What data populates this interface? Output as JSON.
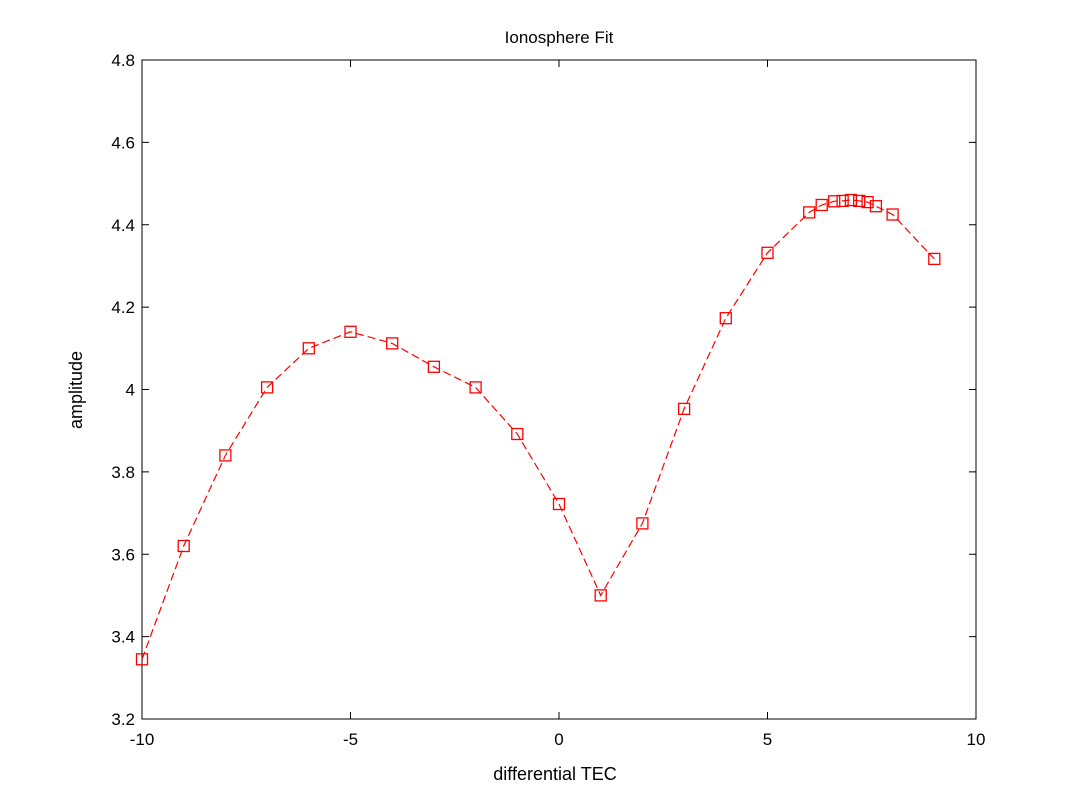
{
  "chart_data": {
    "type": "line",
    "title": "Ionosphere Fit",
    "xlabel": "differential TEC",
    "ylabel": "amplitude",
    "xlim": [
      -10,
      10
    ],
    "ylim": [
      3.2,
      4.8
    ],
    "xticks": [
      -10,
      -5,
      0,
      5,
      10
    ],
    "xtick_labels": [
      "-10",
      "-5",
      "0",
      "5",
      "10"
    ],
    "yticks": [
      3.2,
      3.4,
      3.6,
      3.8,
      4.0,
      4.2,
      4.4,
      4.6,
      4.8
    ],
    "ytick_labels": [
      "3.2",
      "3.4",
      "3.6",
      "3.8",
      "4",
      "4.2",
      "4.4",
      "4.6",
      "4.8"
    ],
    "grid": false,
    "series": [
      {
        "color": "#ff0000",
        "line_style": "dashed",
        "marker": "square",
        "x": [
          -10,
          -9,
          -8,
          -7,
          -6,
          -5,
          -4,
          -3,
          -2,
          -1,
          0,
          1,
          2,
          3,
          4,
          5,
          6,
          6.3,
          6.6,
          6.8,
          7,
          7.2,
          7.4,
          7.6,
          8,
          9
        ],
        "y": [
          3.345,
          3.62,
          3.84,
          4.005,
          4.1,
          4.14,
          4.112,
          4.055,
          4.005,
          3.892,
          3.722,
          3.5,
          3.675,
          3.953,
          4.173,
          4.332,
          4.43,
          4.448,
          4.457,
          4.458,
          4.46,
          4.458,
          4.455,
          4.445,
          4.425,
          4.317
        ]
      }
    ]
  }
}
